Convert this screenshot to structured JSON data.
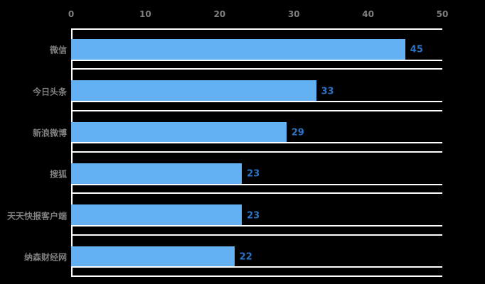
{
  "chart_data": {
    "type": "bar",
    "orientation": "horizontal",
    "title": "",
    "xlabel": "",
    "ylabel": "",
    "categories": [
      "微信",
      "今日头条",
      "新浪微博",
      "搜狐",
      "天天快报客户端",
      "纳森财经网"
    ],
    "values": [
      45,
      33,
      29,
      23,
      23,
      22
    ],
    "xlim": [
      0,
      50
    ],
    "x_ticks": [
      0,
      10,
      20,
      30,
      40,
      50
    ],
    "x_axis_position": "top",
    "grid": "band-separators-and-bar-baselines",
    "legend_position": "none",
    "colors": {
      "background": "#000000",
      "bar_fill": "#63B1F2",
      "value_label": "#2B73C4",
      "axis_text": "#7F7F7F",
      "grid_line": "#FFFFFF"
    }
  }
}
